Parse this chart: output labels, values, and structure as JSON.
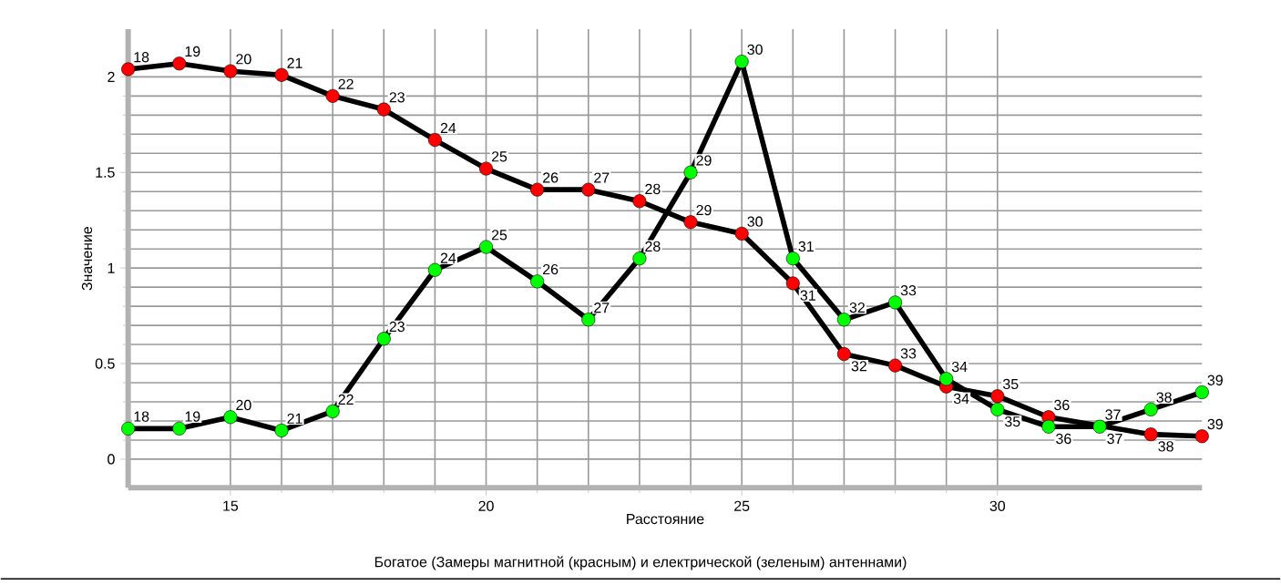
{
  "chart_data": {
    "type": "line",
    "title": "Богатое (Замеры магнитной (красным) и електрической (зеленым) антеннами)",
    "xlabel": "Расстояние",
    "ylabel": "Значение",
    "x": [
      13,
      14,
      15,
      16,
      17,
      18,
      19,
      20,
      21,
      22,
      23,
      24,
      25,
      26,
      27,
      28,
      29,
      30,
      31,
      32,
      33,
      34
    ],
    "series": [
      {
        "color": "#ff0000",
        "values": [
          2.04,
          2.07,
          2.03,
          2.01,
          1.9,
          1.83,
          1.67,
          1.52,
          1.41,
          1.41,
          1.35,
          1.24,
          1.18,
          0.92,
          0.55,
          0.49,
          0.38,
          0.33,
          0.22,
          null,
          0.13,
          0.12
        ]
      },
      {
        "color": "#00ff00",
        "values": [
          0.16,
          0.16,
          0.22,
          0.15,
          0.25,
          0.63,
          0.99,
          1.11,
          0.93,
          0.73,
          1.05,
          1.5,
          2.08,
          1.05,
          0.73,
          0.82,
          0.42,
          0.26,
          0.17,
          0.17,
          0.26,
          0.35
        ]
      }
    ],
    "annotations": [
      {
        "text": "18",
        "x": 13,
        "y": 2.04
      },
      {
        "text": "19",
        "x": 14,
        "y": 2.07
      },
      {
        "text": "20",
        "x": 15,
        "y": 2.03
      },
      {
        "text": "21",
        "x": 16,
        "y": 2.01
      },
      {
        "text": "22",
        "x": 17,
        "y": 1.9
      },
      {
        "text": "23",
        "x": 18,
        "y": 1.83
      },
      {
        "text": "24",
        "x": 19,
        "y": 1.67
      },
      {
        "text": "25",
        "x": 20,
        "y": 1.52
      },
      {
        "text": "26",
        "x": 21,
        "y": 1.41
      },
      {
        "text": "27",
        "x": 22,
        "y": 1.41
      },
      {
        "text": "28",
        "x": 23,
        "y": 1.35
      },
      {
        "text": "29",
        "x": 24,
        "y": 1.24
      },
      {
        "text": "30",
        "x": 25,
        "y": 1.18
      },
      {
        "text": "31",
        "x": 26,
        "y": 0.92
      },
      {
        "text": "32",
        "x": 27,
        "y": 0.55
      },
      {
        "text": "33",
        "x": 28,
        "y": 0.49
      },
      {
        "text": "34",
        "x": 29,
        "y": 0.38
      },
      {
        "text": "35",
        "x": 30,
        "y": 0.33
      },
      {
        "text": "36",
        "x": 31,
        "y": 0.22
      },
      {
        "text": "37",
        "x": 32,
        "y": 0.17
      },
      {
        "text": "38",
        "x": 33,
        "y": 0.13
      },
      {
        "text": "39",
        "x": 34,
        "y": 0.12
      },
      {
        "text": "18",
        "x": 13,
        "y": 0.16
      },
      {
        "text": "19",
        "x": 14,
        "y": 0.16
      },
      {
        "text": "20",
        "x": 15,
        "y": 0.22
      },
      {
        "text": "21",
        "x": 16,
        "y": 0.15
      },
      {
        "text": "22",
        "x": 17,
        "y": 0.25
      },
      {
        "text": "23",
        "x": 18,
        "y": 0.63
      },
      {
        "text": "24",
        "x": 19,
        "y": 0.99
      },
      {
        "text": "25",
        "x": 20,
        "y": 1.11
      },
      {
        "text": "26",
        "x": 21,
        "y": 0.93
      },
      {
        "text": "27",
        "x": 22,
        "y": 0.73
      },
      {
        "text": "28",
        "x": 23,
        "y": 1.05
      },
      {
        "text": "29",
        "x": 24,
        "y": 1.5
      },
      {
        "text": "30",
        "x": 25,
        "y": 2.08
      },
      {
        "text": "31",
        "x": 26,
        "y": 1.05
      },
      {
        "text": "32",
        "x": 27,
        "y": 0.73
      },
      {
        "text": "33",
        "x": 28,
        "y": 0.82
      },
      {
        "text": "34",
        "x": 29,
        "y": 0.42
      },
      {
        "text": "35",
        "x": 30,
        "y": 0.26
      },
      {
        "text": "36",
        "x": 31,
        "y": 0.17
      },
      {
        "text": "37",
        "x": 32,
        "y": 0.17
      },
      {
        "text": "38",
        "x": 33,
        "y": 0.26
      },
      {
        "text": "39",
        "x": 34,
        "y": 0.35
      }
    ],
    "xlim": [
      13,
      34
    ],
    "ylim": [
      -0.15,
      2.25
    ],
    "xticks": [
      15,
      20,
      25,
      30
    ],
    "yticks": [
      0,
      0.5,
      1,
      1.5,
      2
    ],
    "grid": true,
    "legend": false,
    "marker": "circle",
    "line_style": "solid"
  }
}
